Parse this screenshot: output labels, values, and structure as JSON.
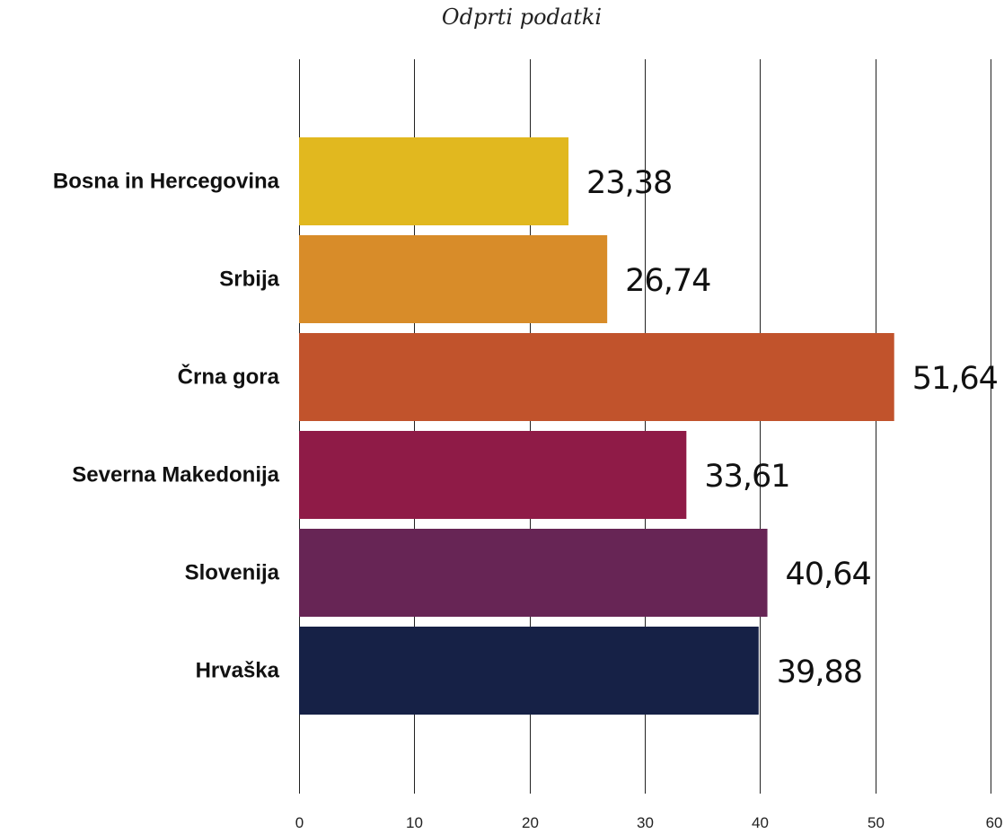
{
  "chart_data": {
    "type": "bar",
    "orientation": "horizontal",
    "title": "Odprti podatki",
    "categories": [
      "Bosna in Hercegovina",
      "Srbija",
      "Črna gora",
      "Severna Makedonija",
      "Slovenija",
      "Hrvaška"
    ],
    "values": [
      23.38,
      26.74,
      51.64,
      33.61,
      40.64,
      39.88
    ],
    "value_labels": [
      "23,38",
      "26,74",
      "51,64",
      "33,61",
      "40,64",
      "39,88"
    ],
    "colors": [
      "#e1b81f",
      "#d88c29",
      "#c1532c",
      "#8f1b47",
      "#672555",
      "#162146"
    ],
    "xlim": [
      0,
      60
    ],
    "xticks": [
      0,
      10,
      20,
      30,
      40,
      50,
      60
    ],
    "grid": true,
    "xlabel": "",
    "ylabel": ""
  }
}
